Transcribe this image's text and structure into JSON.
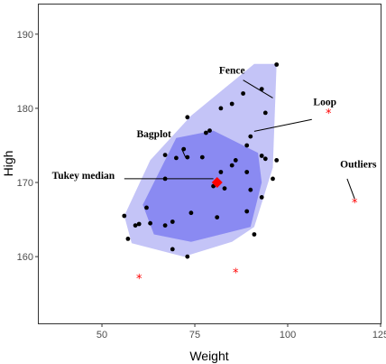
{
  "chart_data": {
    "type": "scatter",
    "title": "",
    "xlabel": "Weight",
    "ylabel": "High",
    "xlim": [
      33,
      125
    ],
    "ylim": [
      151,
      194
    ],
    "xticks": [
      50,
      75,
      100,
      125
    ],
    "yticks": [
      160,
      170,
      180,
      190
    ],
    "grid": false,
    "colors": {
      "fence": "#c4c4f7",
      "bag": "#8a8af2",
      "points": "#000000",
      "outliers": "#ff0000",
      "median": "#ff0000"
    },
    "fence_polygon": [
      [
        58,
        161.8
      ],
      [
        56,
        165.5
      ],
      [
        63,
        173
      ],
      [
        74,
        179
      ],
      [
        91,
        186
      ],
      [
        97,
        186
      ],
      [
        96,
        172
      ],
      [
        91,
        164
      ],
      [
        85,
        162
      ],
      [
        72,
        160
      ]
    ],
    "bag_polygon": [
      [
        61,
        167
      ],
      [
        64,
        163
      ],
      [
        74,
        162
      ],
      [
        90,
        164
      ],
      [
        93,
        170
      ],
      [
        92,
        174
      ],
      [
        80,
        177
      ],
      [
        70,
        176
      ],
      [
        64,
        170
      ]
    ],
    "points": [
      [
        97,
        185.9
      ],
      [
        93,
        182.6
      ],
      [
        88,
        182
      ],
      [
        85,
        180.6
      ],
      [
        82,
        180
      ],
      [
        94,
        179.4
      ],
      [
        73,
        178.8
      ],
      [
        78,
        176.7
      ],
      [
        79,
        177
      ],
      [
        90,
        176.2
      ],
      [
        89,
        175
      ],
      [
        72,
        174.5
      ],
      [
        67,
        173.7
      ],
      [
        77,
        173.4
      ],
      [
        70,
        173.3
      ],
      [
        73,
        173.4
      ],
      [
        86,
        173
      ],
      [
        93,
        173.6
      ],
      [
        94,
        173.2
      ],
      [
        85,
        172.3
      ],
      [
        97,
        173
      ],
      [
        82,
        171.4
      ],
      [
        89,
        171.4
      ],
      [
        96,
        170.5
      ],
      [
        67,
        170.5
      ],
      [
        80,
        169.5
      ],
      [
        90,
        169
      ],
      [
        93,
        168
      ],
      [
        83,
        169.2
      ],
      [
        62,
        166.6
      ],
      [
        74,
        165.9
      ],
      [
        89,
        166.1
      ],
      [
        81,
        165.3
      ],
      [
        63,
        164.5
      ],
      [
        69,
        164.7
      ],
      [
        67,
        164.2
      ],
      [
        56,
        165.5
      ],
      [
        59,
        164.2
      ],
      [
        60,
        164.4
      ],
      [
        57,
        162.4
      ],
      [
        91,
        163
      ],
      [
        69,
        161
      ],
      [
        73,
        160
      ]
    ],
    "outliers": [
      [
        111,
        179.4
      ],
      [
        118,
        167.3
      ],
      [
        60,
        157.1
      ],
      [
        86,
        157.9
      ]
    ],
    "median": [
      81,
      170
    ],
    "annotations": [
      {
        "label": "Fence",
        "text_at": [
          85,
          184.7
        ],
        "line_from": [
          88,
          183.8
        ],
        "line_to": [
          96,
          181.4
        ]
      },
      {
        "label": "Loop",
        "text_at": [
          110,
          180.4
        ],
        "line_from": [
          106.5,
          178.5
        ],
        "line_to": [
          91,
          176.9
        ]
      },
      {
        "label": "Bagplot",
        "text_at": [
          64,
          176.1
        ],
        "line_from": [
          71.5,
          174.5
        ],
        "line_to": [
          72.5,
          173.4
        ]
      },
      {
        "label": "Tukey median",
        "text_at": [
          45,
          170.5
        ],
        "line_from": [
          56,
          170.5
        ],
        "line_to": [
          80,
          170.5
        ]
      },
      {
        "label": "Outliers",
        "text_at": [
          119,
          172
        ],
        "line_from": [
          116,
          170.5
        ],
        "line_to": [
          118,
          167.8
        ]
      }
    ]
  }
}
